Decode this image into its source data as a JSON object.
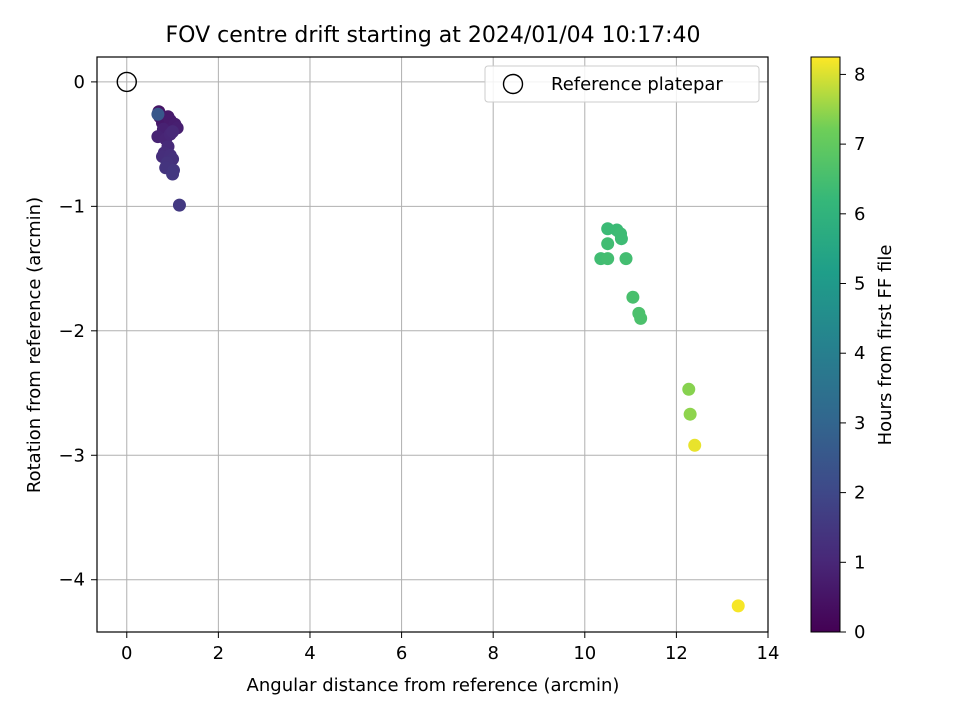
{
  "chart_data": {
    "type": "scatter",
    "title": "FOV centre drift starting at 2024/01/04 10:17:40",
    "xlabel": "Angular distance from reference (arcmin)",
    "ylabel": "Rotation from reference (arcmin)",
    "xlim": [
      -0.65,
      14.0
    ],
    "ylim": [
      -4.42,
      0.2
    ],
    "xticks": [
      0,
      2,
      4,
      6,
      8,
      10,
      12,
      14
    ],
    "yticks": [
      0,
      -1,
      -2,
      -3,
      -4
    ],
    "ytick_labels": [
      "0",
      "−1",
      "−2",
      "−3",
      "−4"
    ],
    "grid": true,
    "legend": {
      "position": "top-right",
      "entries": [
        "Reference platepar"
      ]
    },
    "colorbar": {
      "label": "Hours from first FF file",
      "range": [
        0,
        8.25
      ],
      "ticks": [
        0,
        1,
        2,
        3,
        4,
        5,
        6,
        7,
        8
      ],
      "colormap": "viridis"
    },
    "reference_point": {
      "x": 0.0,
      "y": 0.0
    },
    "series": [
      {
        "points": [
          {
            "x": 0.7,
            "y": -0.24,
            "h": 0.5
          },
          {
            "x": 0.72,
            "y": -0.28,
            "h": 0.55
          },
          {
            "x": 0.78,
            "y": -0.33,
            "h": 0.6
          },
          {
            "x": 0.9,
            "y": -0.28,
            "h": 0.65
          },
          {
            "x": 0.95,
            "y": -0.31,
            "h": 0.7
          },
          {
            "x": 1.05,
            "y": -0.34,
            "h": 0.75
          },
          {
            "x": 1.1,
            "y": -0.37,
            "h": 0.8
          },
          {
            "x": 0.8,
            "y": -0.38,
            "h": 0.85
          },
          {
            "x": 0.68,
            "y": -0.44,
            "h": 0.9
          },
          {
            "x": 0.85,
            "y": -0.46,
            "h": 0.95
          },
          {
            "x": 0.95,
            "y": -0.42,
            "h": 1.0
          },
          {
            "x": 1.0,
            "y": -0.4,
            "h": 1.05
          },
          {
            "x": 0.9,
            "y": -0.52,
            "h": 1.1
          },
          {
            "x": 0.82,
            "y": -0.57,
            "h": 1.15
          },
          {
            "x": 0.78,
            "y": -0.6,
            "h": 1.2
          },
          {
            "x": 0.95,
            "y": -0.59,
            "h": 1.25
          },
          {
            "x": 1.0,
            "y": -0.62,
            "h": 1.3
          },
          {
            "x": 0.88,
            "y": -0.65,
            "h": 1.35
          },
          {
            "x": 0.85,
            "y": -0.69,
            "h": 1.4
          },
          {
            "x": 1.02,
            "y": -0.71,
            "h": 1.45
          },
          {
            "x": 1.0,
            "y": -0.74,
            "h": 1.5
          },
          {
            "x": 1.15,
            "y": -0.99,
            "h": 1.55
          },
          {
            "x": 0.68,
            "y": -0.26,
            "h": 2.5
          },
          {
            "x": 10.5,
            "y": -1.18,
            "h": 6.3
          },
          {
            "x": 10.7,
            "y": -1.19,
            "h": 6.3
          },
          {
            "x": 10.78,
            "y": -1.22,
            "h": 6.35
          },
          {
            "x": 10.8,
            "y": -1.26,
            "h": 6.35
          },
          {
            "x": 10.5,
            "y": -1.3,
            "h": 6.4
          },
          {
            "x": 10.35,
            "y": -1.42,
            "h": 6.4
          },
          {
            "x": 10.5,
            "y": -1.42,
            "h": 6.45
          },
          {
            "x": 10.9,
            "y": -1.42,
            "h": 6.45
          },
          {
            "x": 11.05,
            "y": -1.73,
            "h": 6.55
          },
          {
            "x": 11.18,
            "y": -1.86,
            "h": 6.6
          },
          {
            "x": 11.22,
            "y": -1.9,
            "h": 6.6
          },
          {
            "x": 12.27,
            "y": -2.47,
            "h": 7.4
          },
          {
            "x": 12.3,
            "y": -2.67,
            "h": 7.45
          },
          {
            "x": 12.4,
            "y": -2.92,
            "h": 8.1
          },
          {
            "x": 13.35,
            "y": -4.21,
            "h": 8.2
          }
        ]
      }
    ]
  }
}
